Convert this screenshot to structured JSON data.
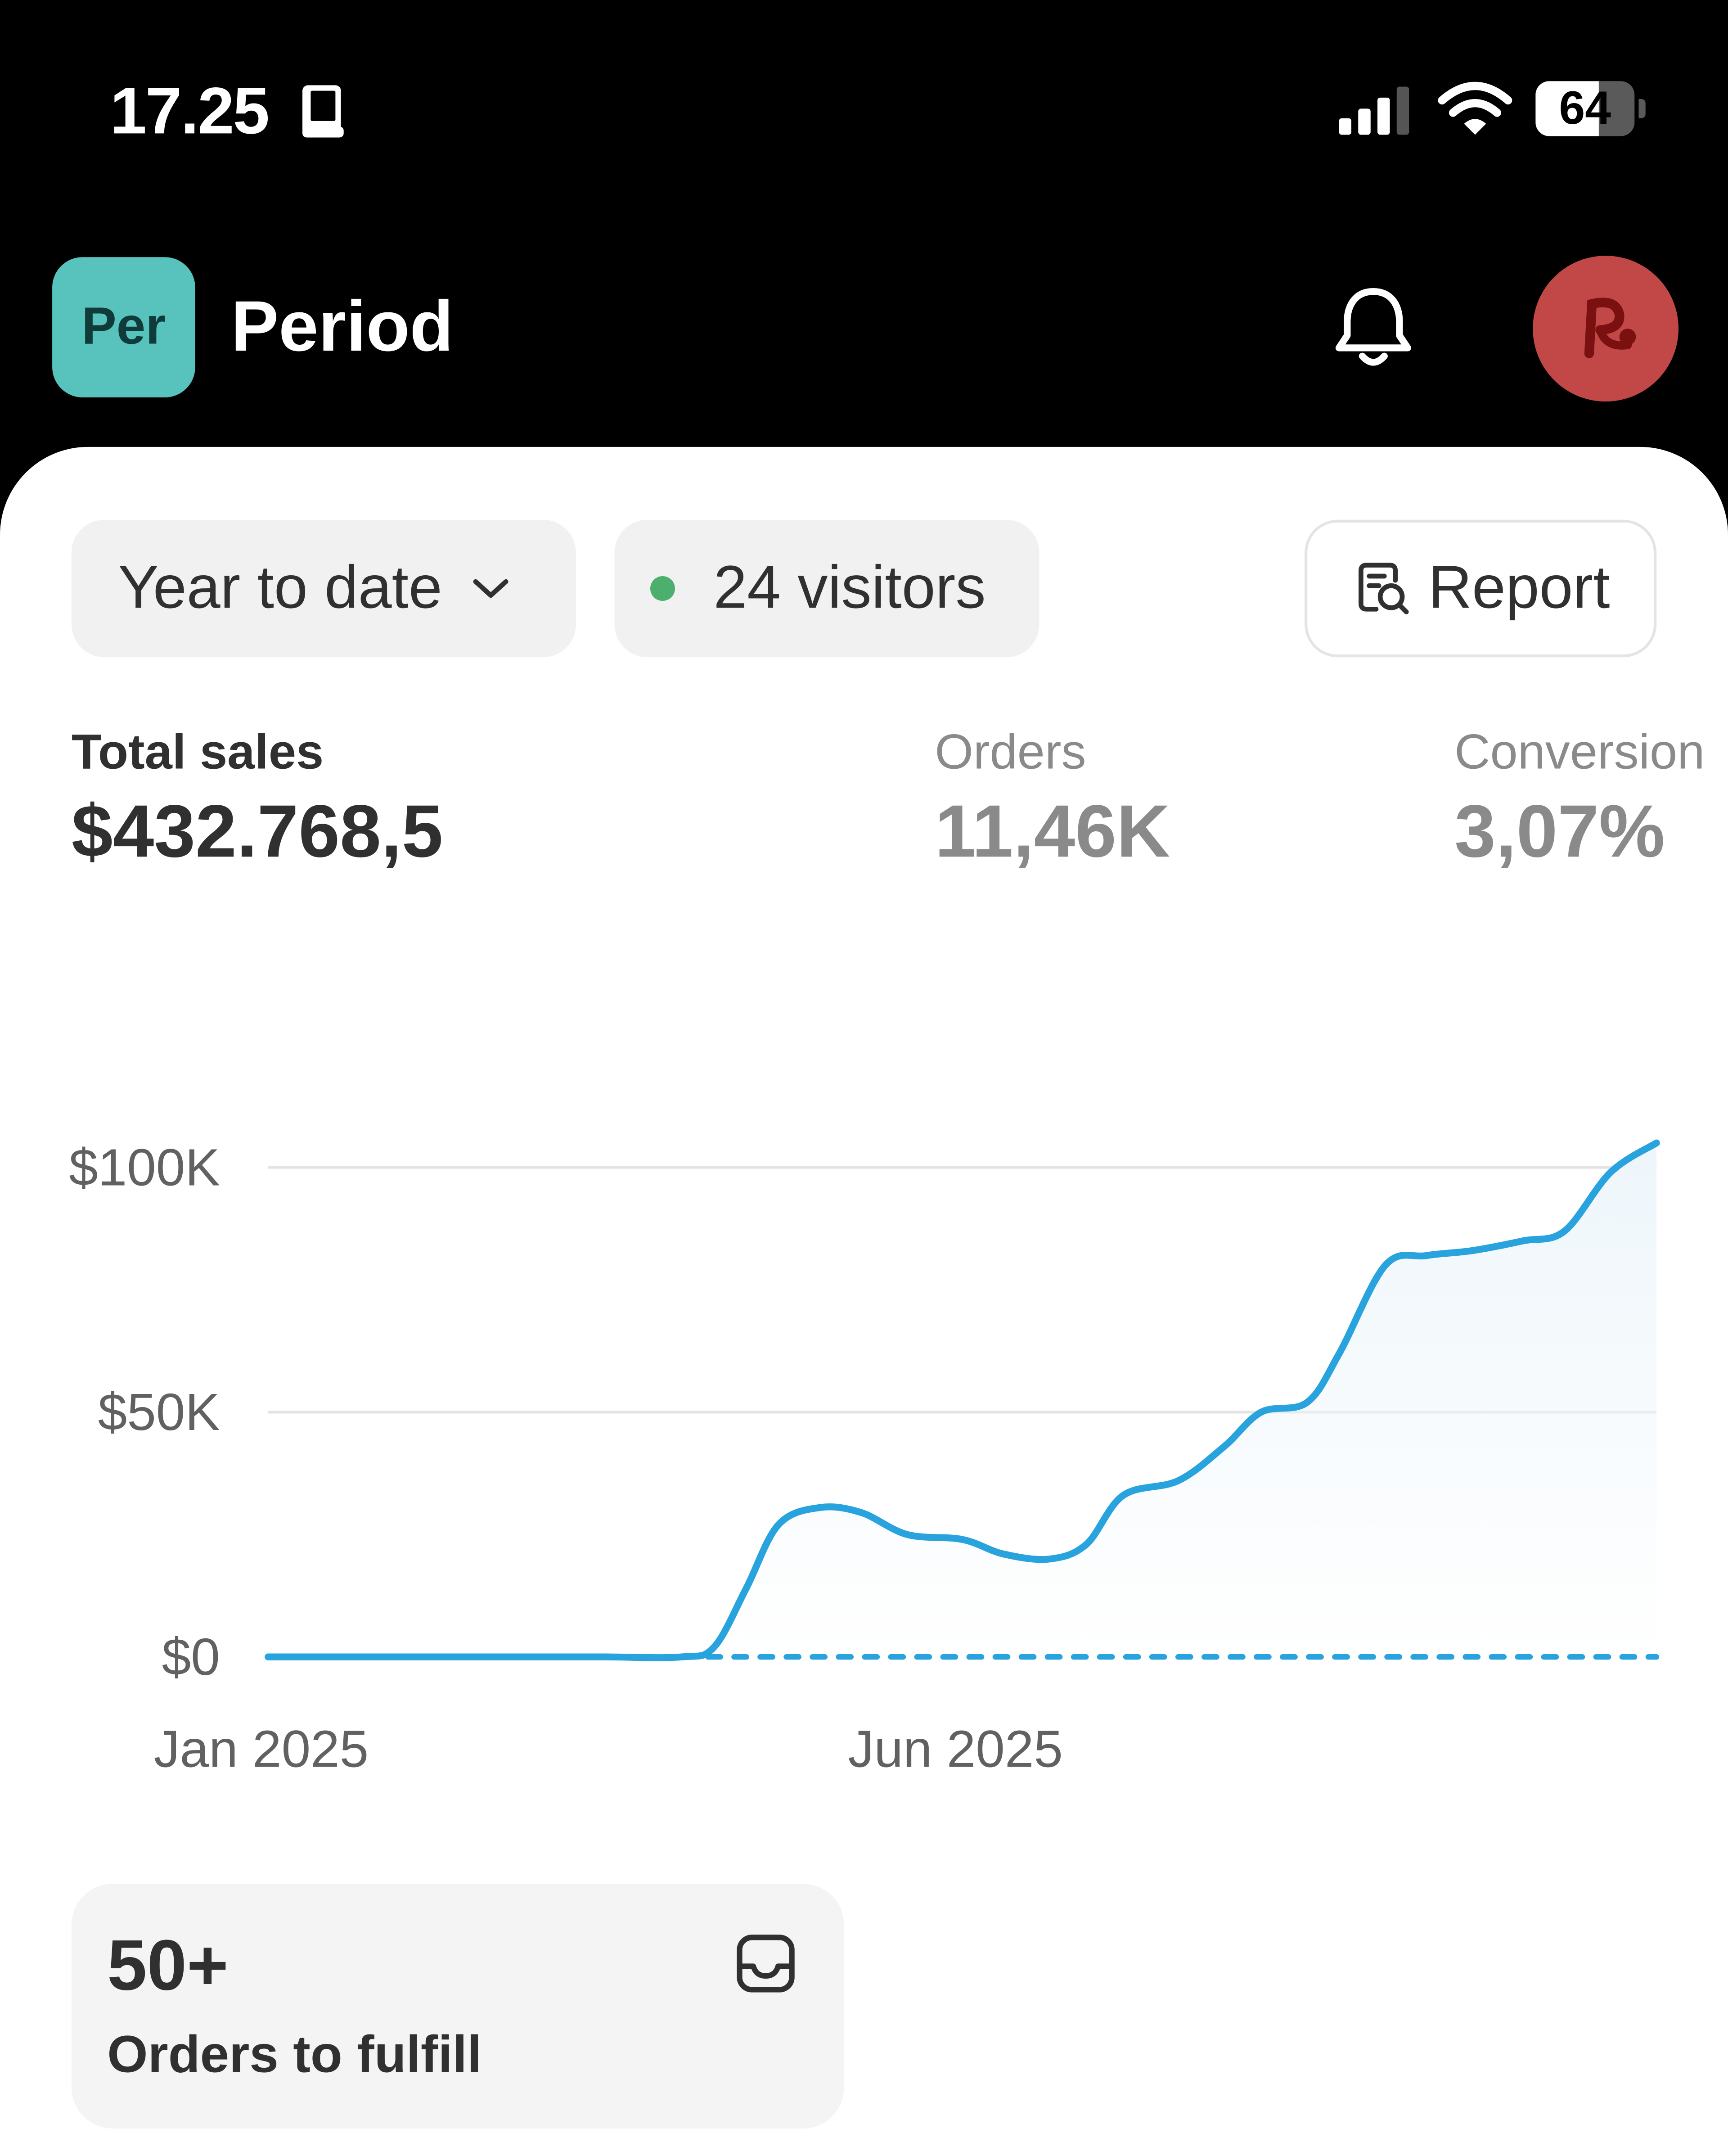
{
  "status_bar": {
    "time": "17.25",
    "battery": "64",
    "battery_level": 0.64,
    "icons": [
      "book-icon",
      "cellular-signal-icon",
      "wifi-icon",
      "battery-icon"
    ]
  },
  "header": {
    "store_badge": "Per",
    "store_name": "Period",
    "icons": [
      "bell-icon",
      "avatar"
    ]
  },
  "filters": {
    "date_range": "Year to date",
    "visitors": "24 visitors",
    "report_label": "Report"
  },
  "metrics": {
    "total_sales": {
      "label": "Total sales",
      "value": "$432.768,5"
    },
    "orders": {
      "label": "Orders",
      "value": "11,46K"
    },
    "conversion": {
      "label": "Conversion",
      "value": "3,07%"
    }
  },
  "chart_data": {
    "type": "line",
    "title": "",
    "xlabel": "",
    "ylabel": "",
    "y_ticks": [
      "$100K",
      "$50K",
      "$0"
    ],
    "x_ticks": [
      "Jan 2025",
      "Jun 2025"
    ],
    "ylim": [
      0,
      100000
    ],
    "grid": true,
    "colors": {
      "line": "#29a3dd",
      "grid": "#e3e3e3",
      "area": "#eef6fb"
    },
    "series": [
      {
        "points": [
          [
            "2025-01-01",
            0
          ],
          [
            "2025-01-15",
            0
          ],
          [
            "2025-02-01",
            0
          ],
          [
            "2025-02-15",
            0
          ],
          [
            "2025-03-01",
            0
          ],
          [
            "2025-03-15",
            0
          ],
          [
            "2025-04-01",
            0
          ],
          [
            "2025-04-08",
            2000
          ],
          [
            "2025-04-15",
            14000
          ],
          [
            "2025-04-22",
            27000
          ],
          [
            "2025-05-01",
            30500
          ],
          [
            "2025-05-10",
            29500
          ],
          [
            "2025-05-20",
            25000
          ],
          [
            "2025-06-01",
            24000
          ],
          [
            "2025-06-10",
            21000
          ],
          [
            "2025-06-20",
            20000
          ],
          [
            "2025-06-28",
            23000
          ],
          [
            "2025-07-06",
            33000
          ],
          [
            "2025-07-18",
            36000
          ],
          [
            "2025-07-28",
            43000
          ],
          [
            "2025-08-05",
            50000
          ],
          [
            "2025-08-15",
            52000
          ],
          [
            "2025-08-22",
            62000
          ],
          [
            "2025-09-01",
            80000
          ],
          [
            "2025-09-10",
            82000
          ],
          [
            "2025-09-20",
            83000
          ],
          [
            "2025-10-01",
            85000
          ],
          [
            "2025-10-10",
            87000
          ],
          [
            "2025-10-20",
            99000
          ],
          [
            "2025-10-30",
            105000
          ]
        ]
      },
      {
        "style": "dashed",
        "points": [
          [
            "2025-04-01",
            0
          ],
          [
            "2025-10-30",
            0
          ]
        ]
      }
    ]
  },
  "fulfill": {
    "count": "50+",
    "label": "Orders to fulfill",
    "icon": "inbox-icon"
  }
}
